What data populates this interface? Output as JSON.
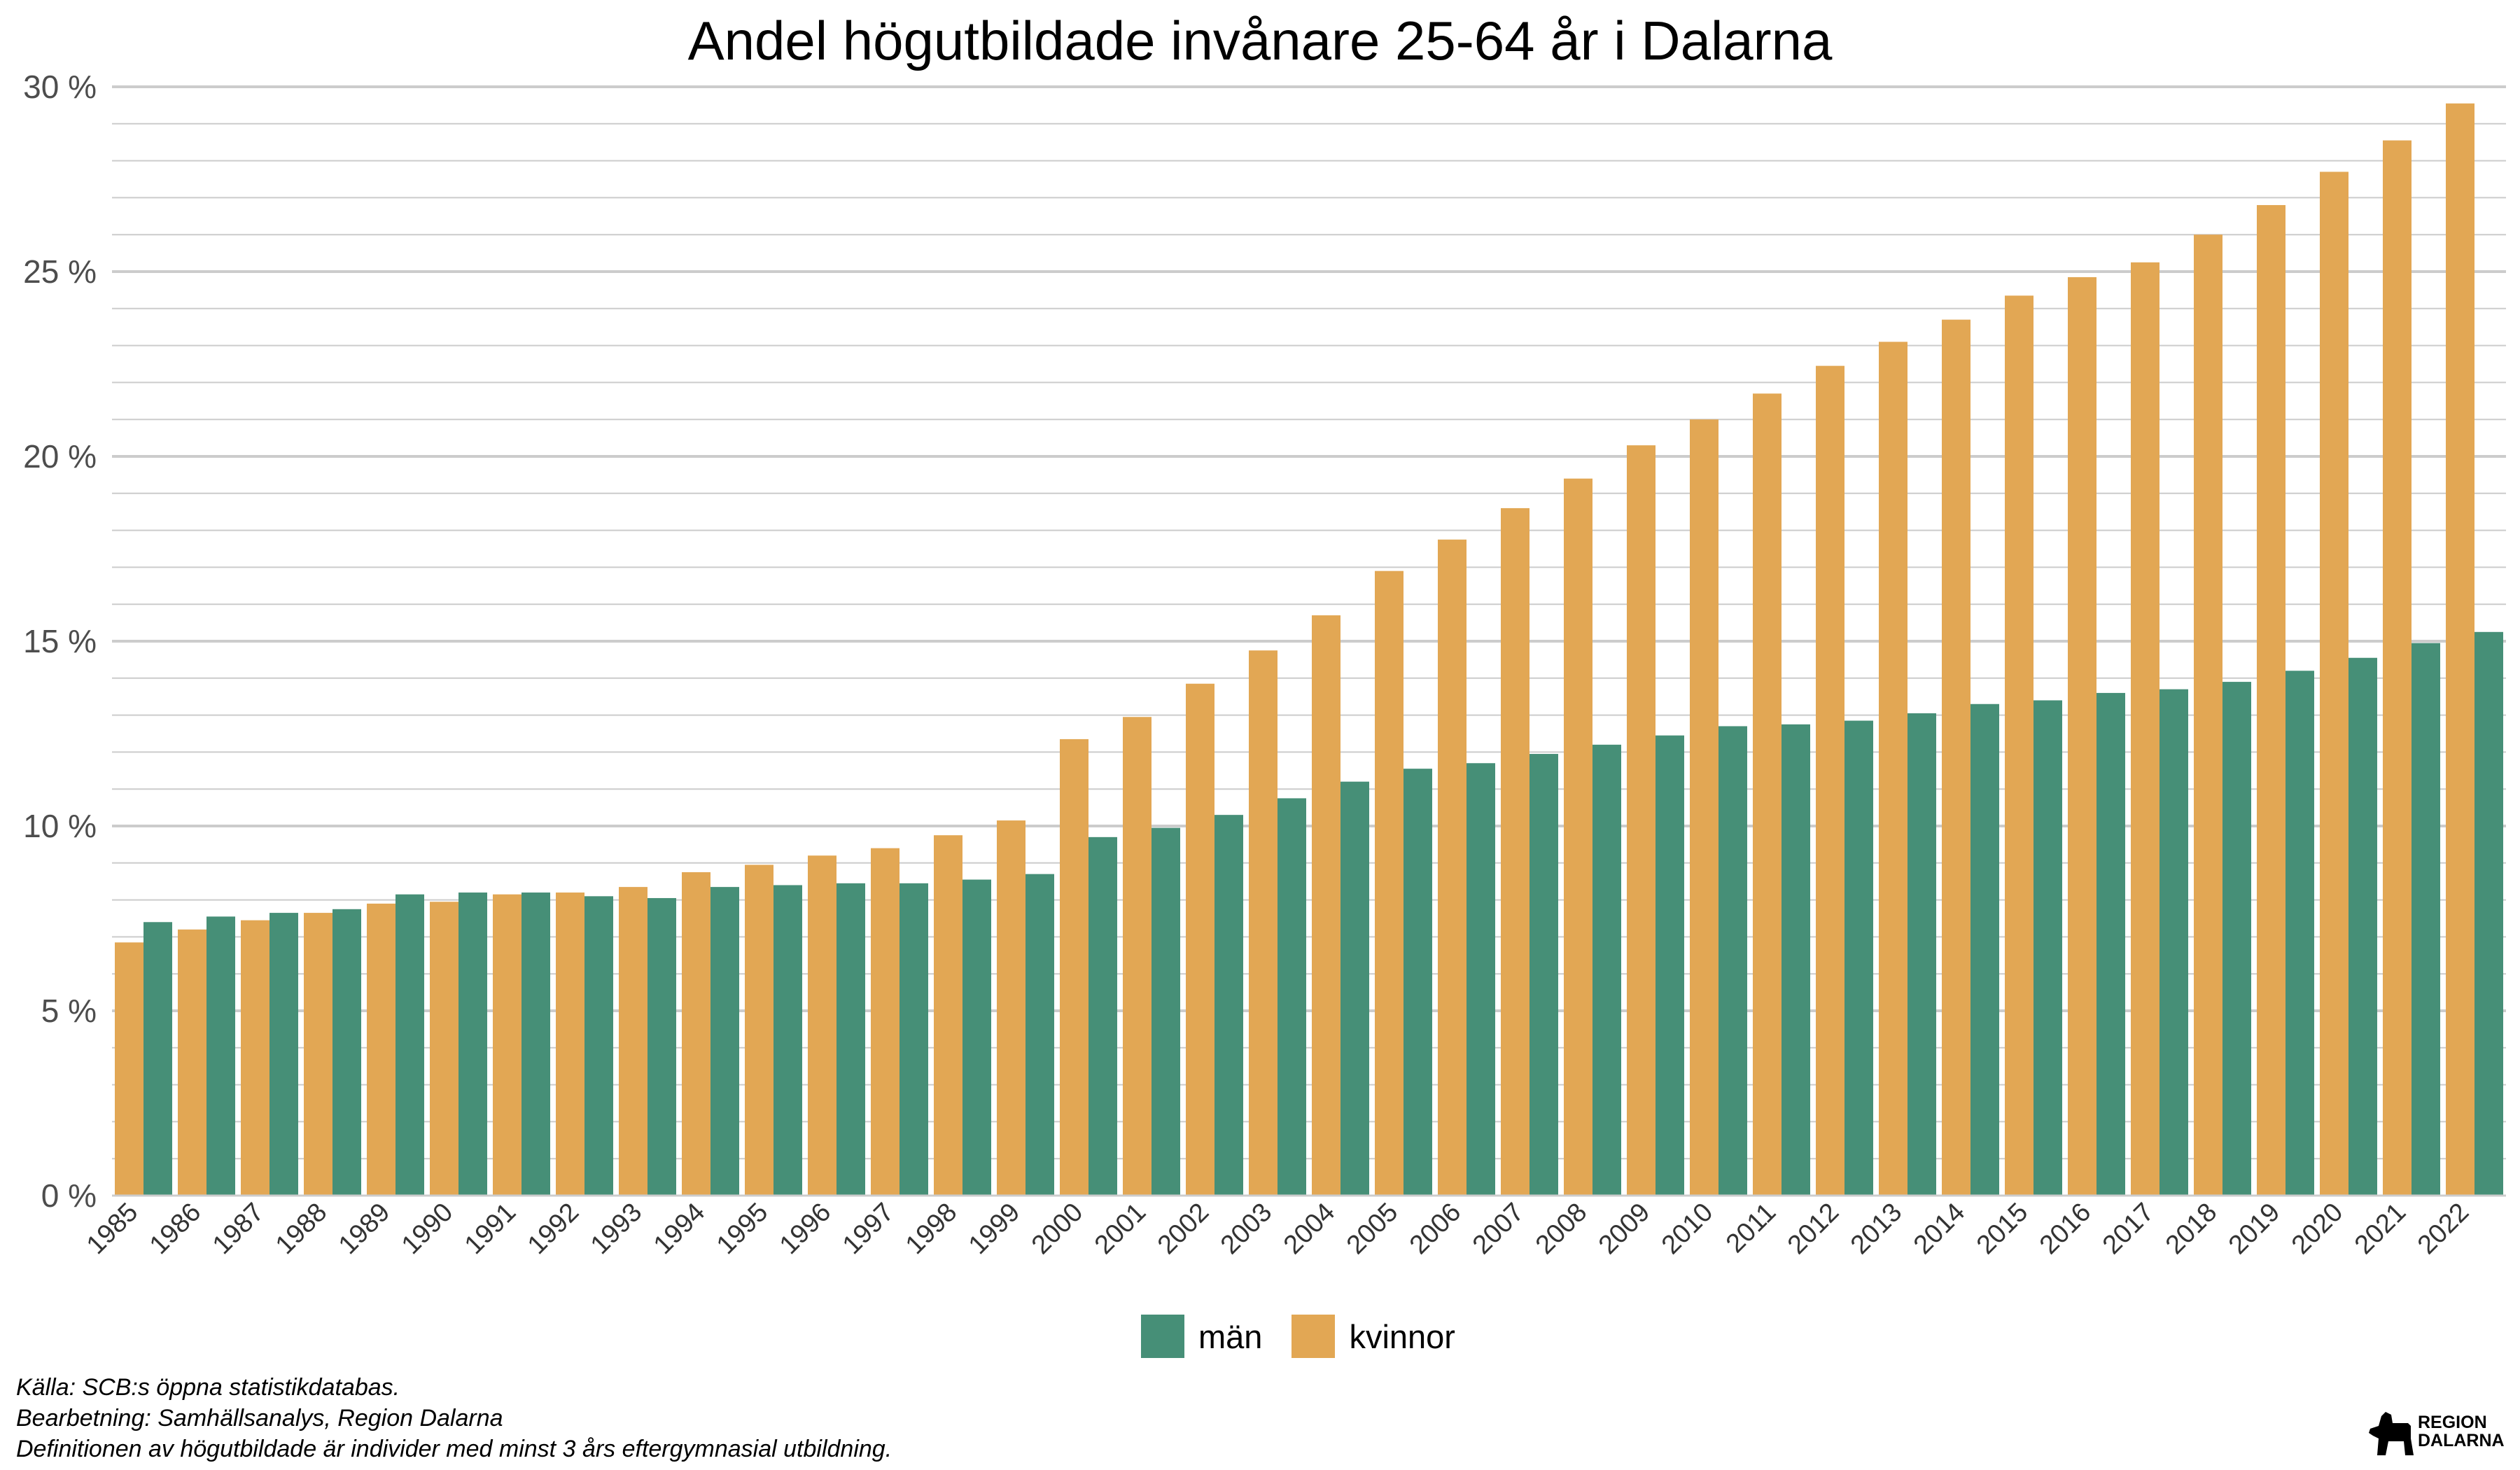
{
  "colors": {
    "men": "#468f77",
    "women": "#e2a754",
    "grid": "#cccccc"
  },
  "chart_data": {
    "type": "bar",
    "title": "Andel högutbildade invånare 25-64 år i Dalarna",
    "xlabel": "",
    "ylabel": "",
    "ylim": [
      0,
      30
    ],
    "y_ticks": [
      "0 %",
      "5 %",
      "10 %",
      "15 %",
      "20 %",
      "25 %",
      "30 %"
    ],
    "grid": true,
    "legend_position": "bottom",
    "categories": [
      "1985",
      "1986",
      "1987",
      "1988",
      "1989",
      "1990",
      "1991",
      "1992",
      "1993",
      "1994",
      "1995",
      "1996",
      "1997",
      "1998",
      "1999",
      "2000",
      "2001",
      "2002",
      "2003",
      "2004",
      "2005",
      "2006",
      "2007",
      "2008",
      "2009",
      "2010",
      "2011",
      "2012",
      "2013",
      "2014",
      "2015",
      "2016",
      "2017",
      "2018",
      "2019",
      "2020",
      "2021",
      "2022"
    ],
    "series": [
      {
        "name": "kvinnor",
        "values": [
          6.85,
          7.2,
          7.45,
          7.65,
          7.9,
          7.95,
          8.15,
          8.2,
          8.35,
          8.75,
          8.95,
          9.2,
          9.4,
          9.75,
          10.15,
          12.35,
          12.95,
          13.85,
          14.75,
          15.7,
          16.9,
          17.75,
          18.6,
          19.4,
          20.3,
          21.0,
          21.7,
          22.45,
          23.1,
          23.7,
          24.35,
          24.85,
          25.25,
          26.0,
          26.8,
          27.7,
          28.55,
          29.55
        ]
      },
      {
        "name": "män",
        "values": [
          7.4,
          7.55,
          7.65,
          7.75,
          8.15,
          8.2,
          8.2,
          8.1,
          8.05,
          8.35,
          8.4,
          8.45,
          8.45,
          8.55,
          8.7,
          9.7,
          9.95,
          10.3,
          10.75,
          11.2,
          11.55,
          11.7,
          11.95,
          12.2,
          12.45,
          12.7,
          12.75,
          12.85,
          13.05,
          13.3,
          13.4,
          13.6,
          13.7,
          13.9,
          14.2,
          14.55,
          14.95,
          15.25
        ]
      }
    ]
  },
  "legend": [
    {
      "label": "män",
      "color": "#468f77"
    },
    {
      "label": "kvinnor",
      "color": "#e2a754"
    }
  ],
  "footnotes": {
    "source": "Källa: SCB:s öppna statistikdatabas.",
    "processing": "Bearbetning: Samhällsanalys, Region Dalarna",
    "definition": "Definitionen av högutbildade är individer med minst 3 års eftergymnasial utbildning."
  },
  "logo": {
    "line1": "REGION",
    "line2": "DALARNA"
  }
}
